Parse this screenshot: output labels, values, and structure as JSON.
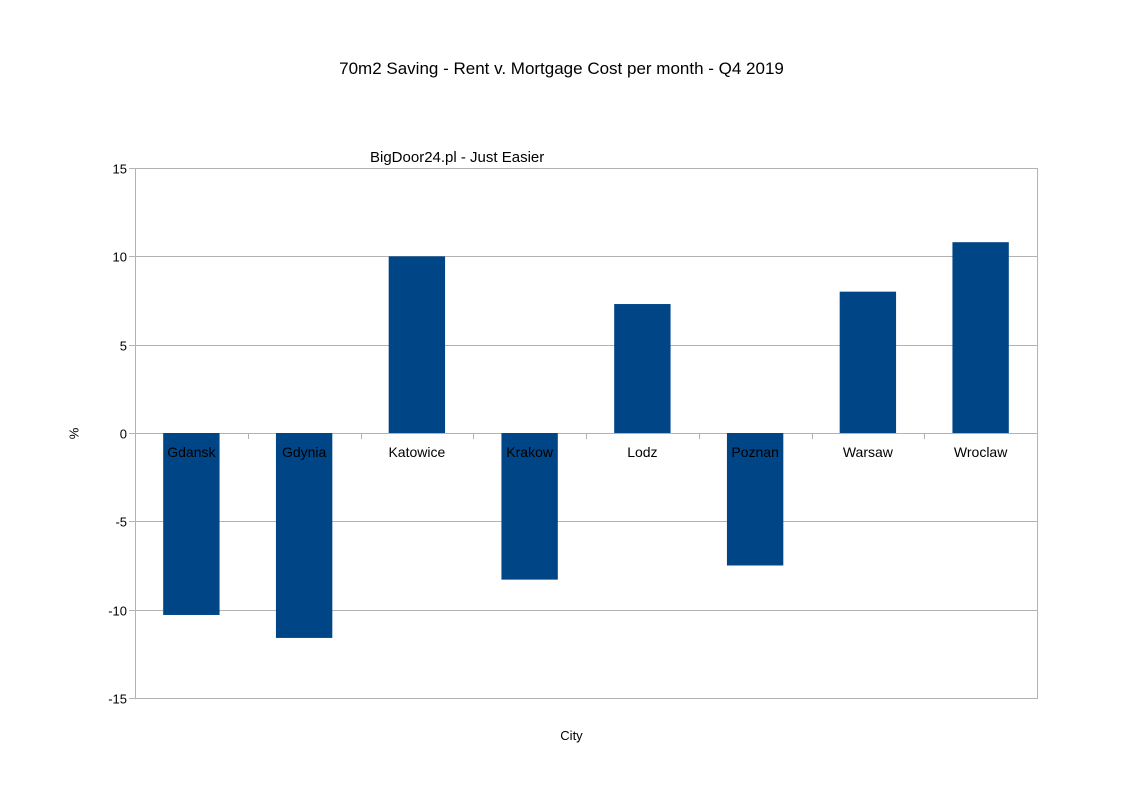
{
  "chart_data": {
    "type": "bar",
    "title": "70m2 Saving - Rent v. Mortgage Cost per month - Q4 2019",
    "subtitle": "BigDoor24.pl - Just Easier",
    "xlabel": "City",
    "ylabel": "%",
    "categories": [
      "Gdansk",
      "Gdynia",
      "Katowice",
      "Krakow",
      "Lodz",
      "Poznan",
      "Warsaw",
      "Wroclaw"
    ],
    "values": [
      -10.3,
      -11.6,
      10.0,
      -8.3,
      7.3,
      -7.5,
      8.0,
      10.8
    ],
    "ylim": [
      -15,
      15
    ],
    "yticks": [
      15,
      10,
      5,
      0,
      -5,
      -10,
      -15
    ],
    "grid": true,
    "legend": "none",
    "colors": {
      "bar": "#004586",
      "grid": "#b3b3b3",
      "axis": "#b3b3b3"
    }
  }
}
